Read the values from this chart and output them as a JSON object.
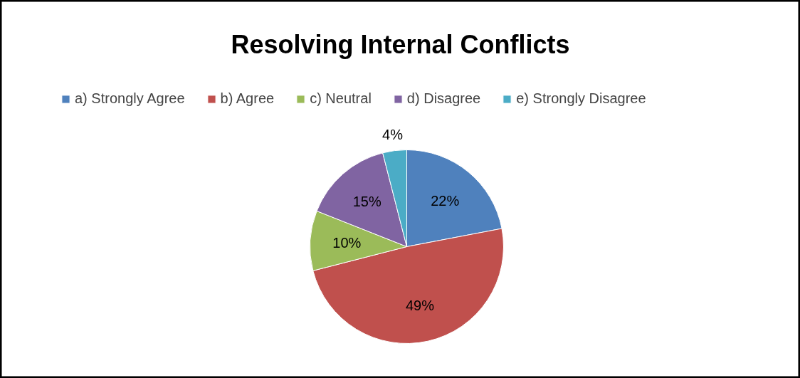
{
  "chart_data": {
    "type": "pie",
    "title": "Resolving Internal Conflicts",
    "categories": [
      "a) Strongly Agree",
      "b) Agree",
      "c) Neutral",
      "d) Disagree",
      "e) Strongly Disagree"
    ],
    "values": [
      22,
      49,
      10,
      15,
      4
    ],
    "colors": [
      "#4f81bd",
      "#c0504d",
      "#9bbb59",
      "#8064a2",
      "#4bacc6"
    ],
    "value_labels": [
      "22%",
      "49%",
      "10%",
      "15%",
      "4%"
    ],
    "legend": "top"
  }
}
